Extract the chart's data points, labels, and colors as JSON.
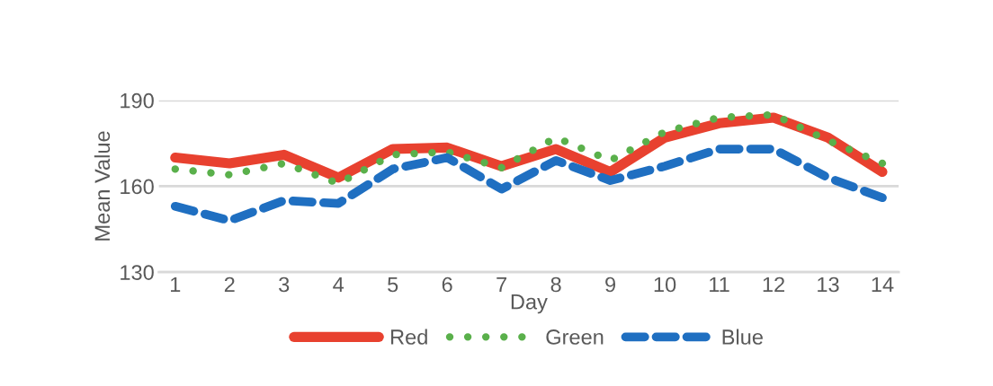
{
  "chart_data": {
    "type": "line",
    "xlabel": "Day",
    "ylabel": "Mean Value",
    "categories": [
      "1",
      "2",
      "3",
      "4",
      "5",
      "6",
      "7",
      "8",
      "9",
      "10",
      "11",
      "12",
      "13",
      "14"
    ],
    "series": [
      {
        "name": "Red",
        "color": "#e8412f",
        "line_style": "solid",
        "values": [
          170,
          168,
          171,
          163,
          173,
          173.5,
          167,
          173,
          165,
          177,
          182,
          184,
          177,
          165
        ]
      },
      {
        "name": "Green",
        "color": "#5ab04b",
        "line_style": "dotted",
        "values": [
          166,
          164,
          168,
          161,
          171,
          172,
          166.5,
          177,
          169,
          179,
          184,
          185,
          176,
          168
        ]
      },
      {
        "name": "Blue",
        "color": "#1f6fc1",
        "line_style": "dashed",
        "values": [
          153,
          148,
          155,
          154,
          166,
          170,
          159,
          169,
          162,
          167,
          173,
          173,
          163,
          156
        ]
      }
    ],
    "ylim": [
      130,
      190
    ],
    "yticks": [
      130,
      160,
      190
    ],
    "grid": "y",
    "legend": "bottom"
  }
}
